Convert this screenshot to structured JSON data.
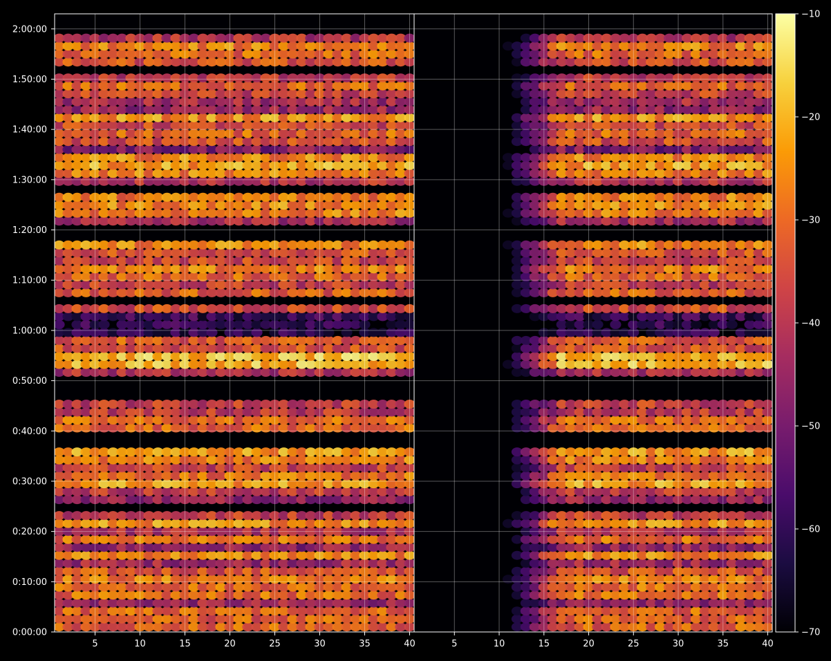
{
  "chart_data": {
    "type": "heatmap",
    "title": "",
    "xlabel": "",
    "ylabel": "",
    "panels": [
      {
        "name": "",
        "x_ticks": [
          5,
          10,
          15,
          20,
          25,
          30,
          35,
          40
        ],
        "x_range": [
          1,
          40
        ]
      },
      {
        "name": "",
        "x_ticks": [
          5,
          10,
          15,
          20,
          25,
          30,
          35,
          40
        ],
        "x_range": [
          1,
          40
        ]
      }
    ],
    "y_range_seconds": [
      0,
      7380
    ],
    "y_ticks": [
      "0:00:00",
      "0:10:00",
      "0:20:00",
      "0:30:00",
      "0:40:00",
      "0:50:00",
      "1:00:00",
      "1:10:00",
      "1:20:00",
      "1:30:00",
      "1:40:00",
      "1:50:00",
      "2:00:00"
    ],
    "grid": true,
    "colormap": "inferno",
    "colorbar": {
      "range": [
        -70,
        -10
      ],
      "ticks": [
        "−10",
        "−20",
        "−30",
        "−40",
        "−50",
        "−60",
        "−70"
      ],
      "tick_values": [
        -10,
        -20,
        -30,
        -40,
        -50,
        -60,
        -70
      ]
    },
    "colors": {
      "background": "#000000",
      "text": "#ffffff",
      "grid": "#ffffff",
      "stops": [
        "#000004",
        "#1b0c41",
        "#4a0c6b",
        "#781c6d",
        "#a52c60",
        "#cf4446",
        "#ed6925",
        "#fb9b06",
        "#f7d13d",
        "#fcffa4"
      ]
    }
  }
}
